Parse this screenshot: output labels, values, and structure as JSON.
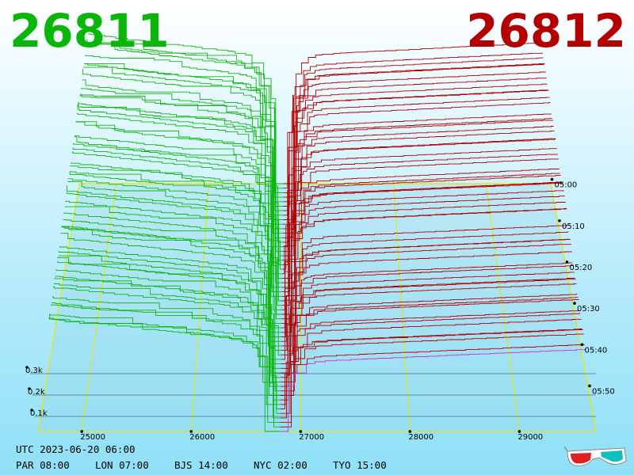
{
  "bid_price": "26811",
  "ask_price": "26812",
  "timestamp": "UTC 2023-06-20 06:00",
  "timezones": [
    {
      "label": "PAR 08:00"
    },
    {
      "label": "LON 07:00"
    },
    {
      "label": "BJS 14:00"
    },
    {
      "label": "NYC 02:00"
    },
    {
      "label": "TYO 15:00"
    }
  ],
  "colors": {
    "bid": "#0bb60b",
    "ask": "#b40000",
    "grid": "#e6e600",
    "current_ask": "#cc33cc"
  },
  "icon": "3d-glasses-icon",
  "chart_data": {
    "type": "3d-depth-waterfall",
    "x_ticks": [
      "25000",
      "26000",
      "27000",
      "28000",
      "29000"
    ],
    "z_ticks": [
      "0.1k",
      "0.2k",
      "0.3k"
    ],
    "time_ticks": [
      "05:00",
      "05:10",
      "05:20",
      "05:30",
      "05:40",
      "05:50"
    ],
    "mid_price": 26811.5
  }
}
